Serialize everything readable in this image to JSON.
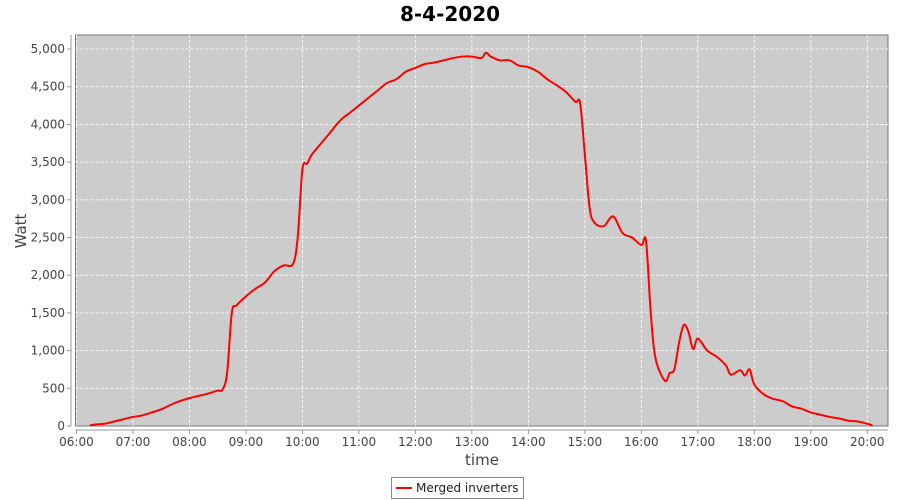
{
  "chart_data": {
    "type": "line",
    "title": "8-4-2020",
    "xlabel": "time",
    "ylabel": "Watt",
    "xlim": [
      "05:59",
      "20:22"
    ],
    "ylim": [
      0,
      5186
    ],
    "x_ticks": [
      "06:00",
      "07:00",
      "08:00",
      "09:00",
      "10:00",
      "11:00",
      "12:00",
      "13:00",
      "14:00",
      "15:00",
      "16:00",
      "17:00",
      "18:00",
      "19:00",
      "20:00"
    ],
    "y_ticks": [
      "0",
      "500",
      "1,000",
      "1,500",
      "2,000",
      "2,500",
      "3,000",
      "3,500",
      "4,000",
      "4,500",
      "5,000"
    ],
    "y_tick_values": [
      0,
      500,
      1000,
      1500,
      2000,
      2500,
      3000,
      3500,
      4000,
      4500,
      5000
    ],
    "grid": true,
    "plot_background": "#cccccc",
    "legend_position": "bottom",
    "series": [
      {
        "name": "Merged inverters",
        "color": "#ff0000",
        "x": [
          "06:15",
          "06:20",
          "06:30",
          "06:40",
          "06:50",
          "07:00",
          "07:10",
          "07:20",
          "07:30",
          "07:40",
          "07:50",
          "08:00",
          "08:10",
          "08:20",
          "08:30",
          "08:35",
          "08:40",
          "08:45",
          "08:50",
          "09:00",
          "09:10",
          "09:20",
          "09:30",
          "09:40",
          "09:50",
          "09:55",
          "10:00",
          "10:05",
          "10:10",
          "10:20",
          "10:30",
          "10:40",
          "10:50",
          "11:00",
          "11:10",
          "11:20",
          "11:30",
          "11:40",
          "11:50",
          "12:00",
          "12:10",
          "12:20",
          "12:30",
          "12:40",
          "12:50",
          "13:00",
          "13:10",
          "13:15",
          "13:20",
          "13:30",
          "13:40",
          "13:50",
          "14:00",
          "14:10",
          "14:20",
          "14:30",
          "14:40",
          "14:50",
          "14:55",
          "15:00",
          "15:05",
          "15:10",
          "15:20",
          "15:30",
          "15:40",
          "15:50",
          "16:00",
          "16:05",
          "16:10",
          "16:15",
          "16:25",
          "16:30",
          "16:35",
          "16:40",
          "16:45",
          "16:50",
          "16:55",
          "17:00",
          "17:10",
          "17:20",
          "17:30",
          "17:35",
          "17:45",
          "17:50",
          "17:55",
          "18:00",
          "18:10",
          "18:20",
          "18:30",
          "18:40",
          "18:50",
          "19:00",
          "19:10",
          "19:20",
          "19:30",
          "19:40",
          "19:50",
          "20:00",
          "20:05"
        ],
        "y": [
          10,
          20,
          30,
          60,
          90,
          120,
          140,
          180,
          220,
          280,
          330,
          370,
          400,
          430,
          470,
          480,
          700,
          1500,
          1600,
          1720,
          1820,
          1900,
          2050,
          2130,
          2150,
          2500,
          3400,
          3480,
          3600,
          3750,
          3900,
          4050,
          4150,
          4250,
          4350,
          4450,
          4550,
          4600,
          4700,
          4750,
          4800,
          4820,
          4850,
          4880,
          4900,
          4900,
          4880,
          4950,
          4900,
          4850,
          4850,
          4780,
          4760,
          4700,
          4600,
          4520,
          4430,
          4300,
          4280,
          3600,
          2900,
          2700,
          2650,
          2780,
          2560,
          2500,
          2400,
          2450,
          1500,
          900,
          600,
          700,
          750,
          1100,
          1340,
          1250,
          1020,
          1160,
          1000,
          920,
          800,
          680,
          740,
          670,
          750,
          550,
          420,
          360,
          330,
          260,
          230,
          180,
          150,
          120,
          100,
          70,
          60,
          30,
          10
        ]
      }
    ]
  }
}
